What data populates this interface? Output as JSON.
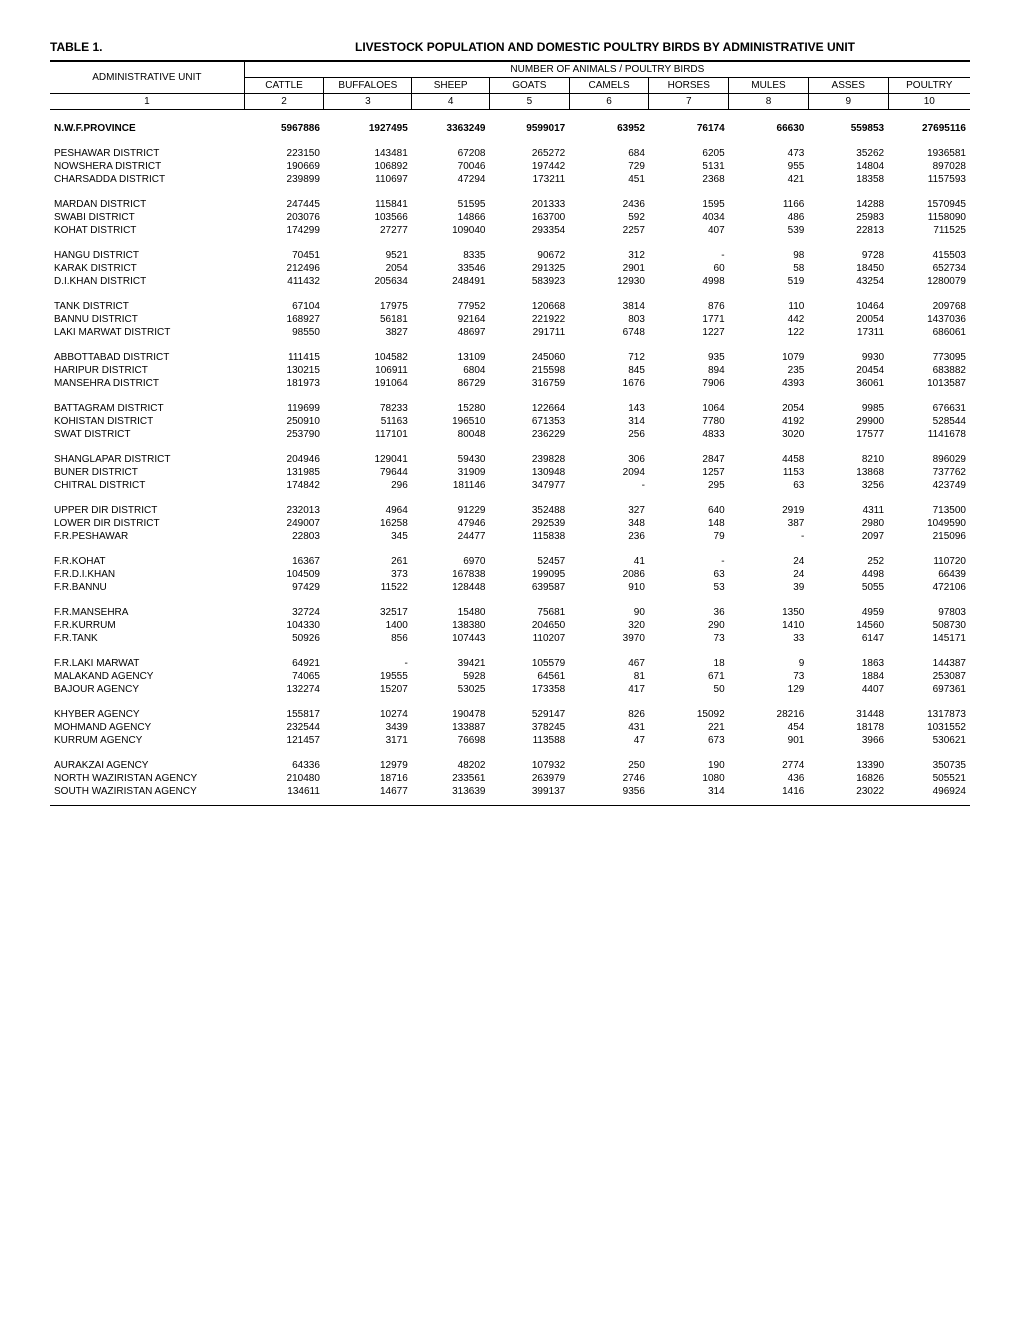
{
  "tableLabel": "TABLE  1.",
  "title": "LIVESTOCK POPULATION AND DOMESTIC POULTRY BIRDS BY ADMINISTRATIVE UNIT",
  "headerTop": "NUMBER OF ANIMALS / POULTRY BIRDS",
  "adminLabel": "ADMINISTRATIVE UNIT",
  "colHeaders": [
    "CATTLE",
    "BUFFALOES",
    "SHEEP",
    "GOATS",
    "CAMELS",
    "HORSES",
    "MULES",
    "ASSES",
    "POULTRY"
  ],
  "colNumbers": [
    "1",
    "2",
    "3",
    "4",
    "5",
    "6",
    "7",
    "8",
    "9",
    "10"
  ],
  "groups": [
    {
      "spacer": true
    },
    {
      "rows": [
        {
          "name": "N.W.F.PROVINCE",
          "v": [
            "5967886",
            "1927495",
            "3363249",
            "9599017",
            "63952",
            "76174",
            "66630",
            "559853",
            "27695116"
          ],
          "bold": true
        }
      ]
    },
    {
      "spacer": true
    },
    {
      "rows": [
        {
          "name": "PESHAWAR DISTRICT",
          "v": [
            "223150",
            "143481",
            "67208",
            "265272",
            "684",
            "6205",
            "473",
            "35262",
            "1936581"
          ]
        },
        {
          "name": "NOWSHERA DISTRICT",
          "v": [
            "190669",
            "106892",
            "70046",
            "197442",
            "729",
            "5131",
            "955",
            "14804",
            "897028"
          ]
        },
        {
          "name": "CHARSADDA DISTRICT",
          "v": [
            "239899",
            "110697",
            "47294",
            "173211",
            "451",
            "2368",
            "421",
            "18358",
            "1157593"
          ]
        }
      ]
    },
    {
      "spacer": true
    },
    {
      "rows": [
        {
          "name": "MARDAN DISTRICT",
          "v": [
            "247445",
            "115841",
            "51595",
            "201333",
            "2436",
            "1595",
            "1166",
            "14288",
            "1570945"
          ]
        },
        {
          "name": "SWABI DISTRICT",
          "v": [
            "203076",
            "103566",
            "14866",
            "163700",
            "592",
            "4034",
            "486",
            "25983",
            "1158090"
          ]
        },
        {
          "name": "KOHAT DISTRICT",
          "v": [
            "174299",
            "27277",
            "109040",
            "293354",
            "2257",
            "407",
            "539",
            "22813",
            "711525"
          ]
        }
      ]
    },
    {
      "spacer": true
    },
    {
      "rows": [
        {
          "name": "HANGU DISTRICT",
          "v": [
            "70451",
            "9521",
            "8335",
            "90672",
            "312",
            "-",
            "98",
            "9728",
            "415503"
          ]
        },
        {
          "name": "KARAK DISTRICT",
          "v": [
            "212496",
            "2054",
            "33546",
            "291325",
            "2901",
            "60",
            "58",
            "18450",
            "652734"
          ]
        },
        {
          "name": "D.I.KHAN DISTRICT",
          "v": [
            "411432",
            "205634",
            "248491",
            "583923",
            "12930",
            "4998",
            "519",
            "43254",
            "1280079"
          ]
        }
      ]
    },
    {
      "spacer": true
    },
    {
      "rows": [
        {
          "name": "TANK DISTRICT",
          "v": [
            "67104",
            "17975",
            "77952",
            "120668",
            "3814",
            "876",
            "110",
            "10464",
            "209768"
          ]
        },
        {
          "name": "BANNU DISTRICT",
          "v": [
            "168927",
            "56181",
            "92164",
            "221922",
            "803",
            "1771",
            "442",
            "20054",
            "1437036"
          ]
        },
        {
          "name": "LAKI MARWAT DISTRICT",
          "v": [
            "98550",
            "3827",
            "48697",
            "291711",
            "6748",
            "1227",
            "122",
            "17311",
            "686061"
          ]
        }
      ]
    },
    {
      "spacer": true
    },
    {
      "rows": [
        {
          "name": "ABBOTTABAD DISTRICT",
          "v": [
            "111415",
            "104582",
            "13109",
            "245060",
            "712",
            "935",
            "1079",
            "9930",
            "773095"
          ]
        },
        {
          "name": "HARIPUR DISTRICT",
          "v": [
            "130215",
            "106911",
            "6804",
            "215598",
            "845",
            "894",
            "235",
            "20454",
            "683882"
          ]
        },
        {
          "name": "MANSEHRA DISTRICT",
          "v": [
            "181973",
            "191064",
            "86729",
            "316759",
            "1676",
            "7906",
            "4393",
            "36061",
            "1013587"
          ]
        }
      ]
    },
    {
      "spacer": true
    },
    {
      "rows": [
        {
          "name": "BATTAGRAM DISTRICT",
          "v": [
            "119699",
            "78233",
            "15280",
            "122664",
            "143",
            "1064",
            "2054",
            "9985",
            "676631"
          ]
        },
        {
          "name": "KOHISTAN DISTRICT",
          "v": [
            "250910",
            "51163",
            "196510",
            "671353",
            "314",
            "7780",
            "4192",
            "29900",
            "528544"
          ]
        },
        {
          "name": "SWAT DISTRICT",
          "v": [
            "253790",
            "117101",
            "80048",
            "236229",
            "256",
            "4833",
            "3020",
            "17577",
            "1141678"
          ]
        }
      ]
    },
    {
      "spacer": true
    },
    {
      "rows": [
        {
          "name": "SHANGLAPAR DISTRICT",
          "v": [
            "204946",
            "129041",
            "59430",
            "239828",
            "306",
            "2847",
            "4458",
            "8210",
            "896029"
          ]
        },
        {
          "name": "BUNER DISTRICT",
          "v": [
            "131985",
            "79644",
            "31909",
            "130948",
            "2094",
            "1257",
            "1153",
            "13868",
            "737762"
          ]
        },
        {
          "name": "CHITRAL DISTRICT",
          "v": [
            "174842",
            "296",
            "181146",
            "347977",
            "-",
            "295",
            "63",
            "3256",
            "423749"
          ]
        }
      ]
    },
    {
      "spacer": true
    },
    {
      "rows": [
        {
          "name": "UPPER DIR DISTRICT",
          "v": [
            "232013",
            "4964",
            "91229",
            "352488",
            "327",
            "640",
            "2919",
            "4311",
            "713500"
          ]
        },
        {
          "name": "LOWER DIR DISTRICT",
          "v": [
            "249007",
            "16258",
            "47946",
            "292539",
            "348",
            "148",
            "387",
            "2980",
            "1049590"
          ]
        },
        {
          "name": "F.R.PESHAWAR",
          "v": [
            "22803",
            "345",
            "24477",
            "115838",
            "236",
            "79",
            "-",
            "2097",
            "215096"
          ]
        }
      ]
    },
    {
      "spacer": true
    },
    {
      "rows": [
        {
          "name": "F.R.KOHAT",
          "v": [
            "16367",
            "261",
            "6970",
            "52457",
            "41",
            "-",
            "24",
            "252",
            "110720"
          ]
        },
        {
          "name": "F.R.D.I.KHAN",
          "v": [
            "104509",
            "373",
            "167838",
            "199095",
            "2086",
            "63",
            "24",
            "4498",
            "66439"
          ]
        },
        {
          "name": "F.R.BANNU",
          "v": [
            "97429",
            "11522",
            "128448",
            "639587",
            "910",
            "53",
            "39",
            "5055",
            "472106"
          ]
        }
      ]
    },
    {
      "spacer": true
    },
    {
      "rows": [
        {
          "name": "F.R.MANSEHRA",
          "v": [
            "32724",
            "32517",
            "15480",
            "75681",
            "90",
            "36",
            "1350",
            "4959",
            "97803"
          ]
        },
        {
          "name": "F.R.KURRUM",
          "v": [
            "104330",
            "1400",
            "138380",
            "204650",
            "320",
            "290",
            "1410",
            "14560",
            "508730"
          ]
        },
        {
          "name": "F.R.TANK",
          "v": [
            "50926",
            "856",
            "107443",
            "110207",
            "3970",
            "73",
            "33",
            "6147",
            "145171"
          ]
        }
      ]
    },
    {
      "spacer": true
    },
    {
      "rows": [
        {
          "name": "F.R.LAKI MARWAT",
          "v": [
            "64921",
            "-",
            "39421",
            "105579",
            "467",
            "18",
            "9",
            "1863",
            "144387"
          ]
        },
        {
          "name": "MALAKAND AGENCY",
          "v": [
            "74065",
            "19555",
            "5928",
            "64561",
            "81",
            "671",
            "73",
            "1884",
            "253087"
          ]
        },
        {
          "name": "BAJOUR AGENCY",
          "v": [
            "132274",
            "15207",
            "53025",
            "173358",
            "417",
            "50",
            "129",
            "4407",
            "697361"
          ]
        }
      ]
    },
    {
      "spacer": true
    },
    {
      "rows": [
        {
          "name": "KHYBER AGENCY",
          "v": [
            "155817",
            "10274",
            "190478",
            "529147",
            "826",
            "15092",
            "28216",
            "31448",
            "1317873"
          ]
        },
        {
          "name": "MOHMAND AGENCY",
          "v": [
            "232544",
            "3439",
            "133887",
            "378245",
            "431",
            "221",
            "454",
            "18178",
            "1031552"
          ]
        },
        {
          "name": "KURRUM AGENCY",
          "v": [
            "121457",
            "3171",
            "76698",
            "113588",
            "47",
            "673",
            "901",
            "3966",
            "530621"
          ]
        }
      ]
    },
    {
      "spacer": true
    },
    {
      "rows": [
        {
          "name": "AURAKZAI AGENCY",
          "v": [
            "64336",
            "12979",
            "48202",
            "107932",
            "250",
            "190",
            "2774",
            "13390",
            "350735"
          ]
        },
        {
          "name": "NORTH WAZIRISTAN AGENCY",
          "v": [
            "210480",
            "18716",
            "233561",
            "263979",
            "2746",
            "1080",
            "436",
            "16826",
            "505521"
          ]
        },
        {
          "name": "SOUTH WAZIRISTAN AGENCY",
          "v": [
            "134611",
            "14677",
            "313639",
            "399137",
            "9356",
            "314",
            "1416",
            "23022",
            "496924"
          ]
        }
      ]
    }
  ]
}
